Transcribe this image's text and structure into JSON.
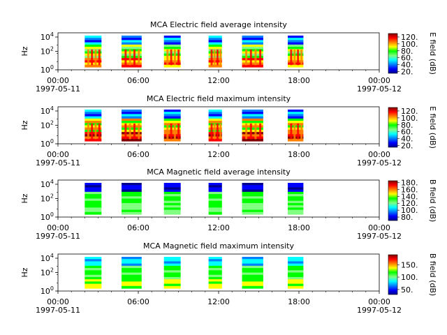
{
  "chart_data": [
    {
      "type": "heatmap",
      "title": "MCA  Electric field average intensity",
      "ylabel": "Hz",
      "y_scale": "log",
      "yticks": [
        "10^0",
        "10^2",
        "10^4"
      ],
      "x_range": [
        "1997-05-11T00:00",
        "1997-05-12T00:00"
      ],
      "xticks": [
        {
          "time": "00:00",
          "date": "1997-05-11"
        },
        {
          "time": "06:00",
          "date": ""
        },
        {
          "time": "12:00",
          "date": ""
        },
        {
          "time": "18:00",
          "date": ""
        },
        {
          "time": "00:00",
          "date": "1997-05-12"
        }
      ],
      "colorbar": {
        "label": "E field (dB)",
        "range": [
          15,
          130
        ],
        "ticks": [
          20,
          40,
          60,
          80,
          100,
          120
        ]
      },
      "data_blocks": [
        {
          "start": "02:00",
          "end": "03:15"
        },
        {
          "start": "04:45",
          "end": "06:15"
        },
        {
          "start": "07:55",
          "end": "09:10"
        },
        {
          "start": "11:15",
          "end": "12:15"
        },
        {
          "start": "13:45",
          "end": "15:20"
        },
        {
          "start": "17:10",
          "end": "18:20"
        }
      ]
    },
    {
      "type": "heatmap",
      "title": "MCA  Electric field maximum intensity",
      "ylabel": "Hz",
      "y_scale": "log",
      "yticks": [
        "10^0",
        "10^2",
        "10^4"
      ],
      "x_range": [
        "1997-05-11T00:00",
        "1997-05-12T00:00"
      ],
      "xticks": [
        {
          "time": "00:00",
          "date": "1997-05-11"
        },
        {
          "time": "06:00",
          "date": ""
        },
        {
          "time": "12:00",
          "date": ""
        },
        {
          "time": "18:00",
          "date": ""
        },
        {
          "time": "00:00",
          "date": "1997-05-12"
        }
      ],
      "colorbar": {
        "label": "E field (dB)",
        "range": [
          15,
          130
        ],
        "ticks": [
          20,
          40,
          60,
          80,
          100,
          120
        ]
      },
      "data_blocks": [
        {
          "start": "02:00",
          "end": "03:15"
        },
        {
          "start": "04:45",
          "end": "06:15"
        },
        {
          "start": "07:55",
          "end": "09:10"
        },
        {
          "start": "11:15",
          "end": "12:15"
        },
        {
          "start": "13:45",
          "end": "15:20"
        },
        {
          "start": "17:10",
          "end": "18:20"
        }
      ]
    },
    {
      "type": "heatmap",
      "title": "MCA  Magnetic field average intensity",
      "ylabel": "Hz",
      "y_scale": "log",
      "yticks": [
        "10^0",
        "10^2",
        "10^4"
      ],
      "x_range": [
        "1997-05-11T00:00",
        "1997-05-12T00:00"
      ],
      "xticks": [
        {
          "time": "00:00",
          "date": "1997-05-11"
        },
        {
          "time": "06:00",
          "date": ""
        },
        {
          "time": "12:00",
          "date": ""
        },
        {
          "time": "18:00",
          "date": ""
        },
        {
          "time": "00:00",
          "date": "1997-05-12"
        }
      ],
      "colorbar": {
        "label": "B field (dB)",
        "range": [
          70,
          185
        ],
        "ticks": [
          80,
          100,
          120,
          140,
          160,
          180
        ]
      },
      "data_blocks": [
        {
          "start": "02:00",
          "end": "03:15"
        },
        {
          "start": "04:45",
          "end": "06:15"
        },
        {
          "start": "07:55",
          "end": "09:10"
        },
        {
          "start": "11:15",
          "end": "12:15"
        },
        {
          "start": "13:45",
          "end": "15:20"
        },
        {
          "start": "17:10",
          "end": "18:20"
        }
      ]
    },
    {
      "type": "heatmap",
      "title": "MCA  Magnetic field maximum intensity",
      "ylabel": "Hz",
      "y_scale": "log",
      "yticks": [
        "10^0",
        "10^2",
        "10^4"
      ],
      "x_range": [
        "1997-05-11T00:00",
        "1997-05-12T00:00"
      ],
      "xticks": [
        {
          "time": "00:00",
          "date": "1997-05-11"
        },
        {
          "time": "06:00",
          "date": ""
        },
        {
          "time": "12:00",
          "date": ""
        },
        {
          "time": "18:00",
          "date": ""
        },
        {
          "time": "00:00",
          "date": "1997-05-12"
        }
      ],
      "colorbar": {
        "label": "B field (dB)",
        "range": [
          30,
          190
        ],
        "ticks": [
          50,
          100,
          150
        ]
      },
      "data_blocks": [
        {
          "start": "02:00",
          "end": "03:15"
        },
        {
          "start": "04:45",
          "end": "06:15"
        },
        {
          "start": "07:55",
          "end": "09:10"
        },
        {
          "start": "11:15",
          "end": "12:15"
        },
        {
          "start": "13:45",
          "end": "15:20"
        },
        {
          "start": "17:10",
          "end": "18:20"
        }
      ]
    }
  ],
  "colormap": [
    "#00008f",
    "#0000ff",
    "#0080ff",
    "#00ffff",
    "#80ff80",
    "#00ff00",
    "#ffff00",
    "#ff8000",
    "#ff0000",
    "#800000"
  ]
}
